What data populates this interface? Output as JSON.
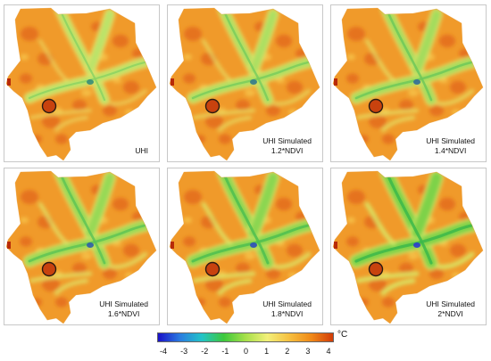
{
  "panels": [
    {
      "caption_line1": "UHI",
      "caption_line2": "",
      "greenness": 0.35
    },
    {
      "caption_line1": "UHI Simulated",
      "caption_line2": "1.2*NDVI",
      "greenness": 0.5
    },
    {
      "caption_line1": "UHI Simulated",
      "caption_line2": "1.4*NDVI",
      "greenness": 0.6
    },
    {
      "caption_line1": "UHI Simulated",
      "caption_line2": "1.6*NDVI",
      "greenness": 0.72
    },
    {
      "caption_line1": "UHI Simulated",
      "caption_line2": "1.8*NDVI",
      "greenness": 0.85
    },
    {
      "caption_line1": "UHI Simulated",
      "caption_line2": "2*NDVI",
      "greenness": 1.0
    }
  ],
  "legend": {
    "unit": "°C",
    "ticks": [
      "-4",
      "-3",
      "-2",
      "-1",
      "0",
      "1",
      "2",
      "3",
      "4"
    ],
    "colors": [
      "#1a10c8",
      "#2a7be0",
      "#22c4c8",
      "#3cc83c",
      "#a6e04a",
      "#f2f07a",
      "#f6c040",
      "#f08a18",
      "#d23c08"
    ]
  }
}
